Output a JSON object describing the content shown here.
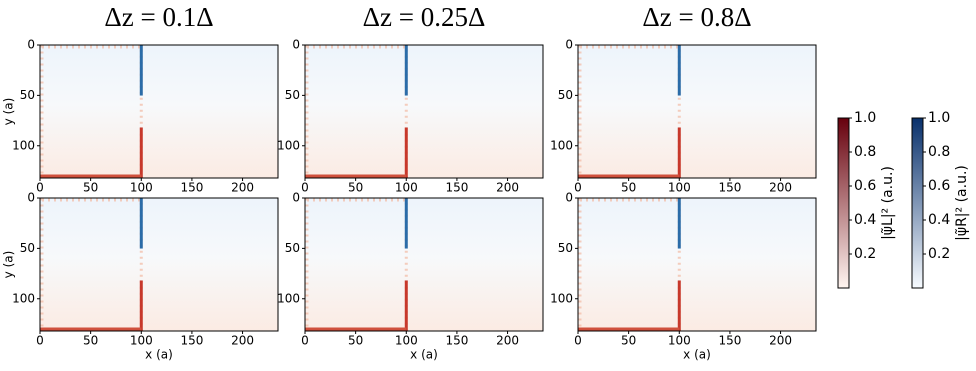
{
  "chart_data": [
    {
      "type": "heatmap",
      "title": "Δz = 0.1Δ",
      "ylabel": "y (a)",
      "xlim": [
        0,
        235
      ],
      "ylim": [
        0,
        132
      ],
      "xticks": [
        0,
        50,
        100,
        150,
        200
      ],
      "yticks": [
        0,
        50,
        100
      ]
    },
    {
      "type": "heatmap",
      "title": "Δz = 0.25Δ",
      "xlim": [
        0,
        235
      ],
      "ylim": [
        0,
        132
      ],
      "xticks": [
        0,
        50,
        100,
        150,
        200
      ],
      "yticks": [
        0,
        50,
        100
      ]
    },
    {
      "type": "heatmap",
      "title": "Δz = 0.8Δ",
      "xlim": [
        0,
        235
      ],
      "ylim": [
        0,
        132
      ],
      "xticks": [
        0,
        50,
        100,
        150,
        200
      ],
      "yticks": [
        0,
        50,
        100
      ]
    },
    {
      "type": "heatmap",
      "xlabel": "x (a)",
      "ylabel": "y (a)",
      "xlim": [
        0,
        235
      ],
      "ylim": [
        0,
        132
      ],
      "xticks": [
        0,
        50,
        100,
        150,
        200
      ],
      "yticks": [
        0,
        50,
        100
      ]
    },
    {
      "type": "heatmap",
      "xlabel": "x (a)",
      "xlim": [
        0,
        235
      ],
      "ylim": [
        0,
        132
      ],
      "xticks": [
        0,
        50,
        100,
        150,
        200
      ],
      "yticks": [
        0,
        50,
        100
      ]
    },
    {
      "type": "heatmap",
      "xlabel": "x (a)",
      "xlim": [
        0,
        235
      ],
      "ylim": [
        0,
        132
      ],
      "xticks": [
        0,
        50,
        100,
        150,
        200
      ],
      "yticks": [
        0,
        50,
        100
      ]
    },
    {
      "type": "colorbar",
      "label": "|ψ̃L|² (a.u.)",
      "colors": [
        "#fff5f0",
        "#67000d"
      ],
      "ylim": [
        0,
        1
      ],
      "yticks": [
        0.2,
        0.4,
        0.6,
        0.8,
        {
          "value": 1,
          "label": "1.0"
        }
      ]
    },
    {
      "type": "colorbar",
      "label": "|ψ̃R|² (a.u.)",
      "colors": [
        "#f7fbff",
        "#08306b"
      ],
      "ylim": [
        0,
        1
      ],
      "yticks": [
        0.2,
        0.4,
        0.6,
        0.8,
        {
          "value": 1,
          "label": "1.0"
        }
      ]
    }
  ]
}
